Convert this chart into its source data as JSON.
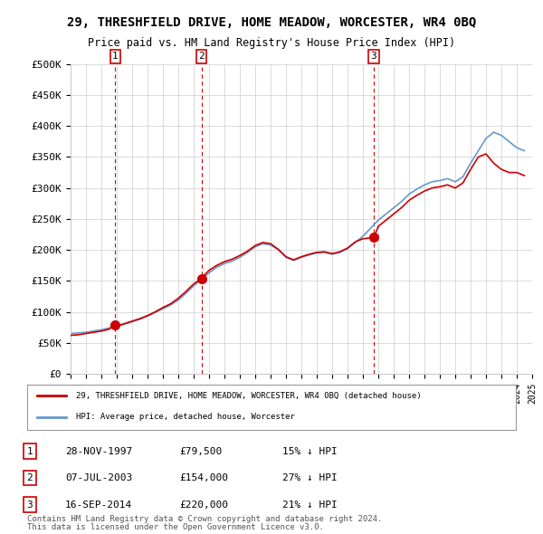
{
  "title": "29, THRESHFIELD DRIVE, HOME MEADOW, WORCESTER, WR4 0BQ",
  "subtitle": "Price paid vs. HM Land Registry's House Price Index (HPI)",
  "ylim": [
    0,
    500000
  ],
  "yticks": [
    0,
    50000,
    100000,
    150000,
    200000,
    250000,
    300000,
    350000,
    400000,
    450000,
    500000
  ],
  "ytick_labels": [
    "£0",
    "£50K",
    "£100K",
    "£150K",
    "£200K",
    "£250K",
    "£300K",
    "£350K",
    "£400K",
    "£450K",
    "£500K"
  ],
  "sale_dates": [
    1997.91,
    2003.52,
    2014.71
  ],
  "sale_prices": [
    79500,
    154000,
    220000
  ],
  "sale_labels": [
    "1",
    "2",
    "3"
  ],
  "legend_red": "29, THRESHFIELD DRIVE, HOME MEADOW, WORCESTER, WR4 0BQ (detached house)",
  "legend_blue": "HPI: Average price, detached house, Worcester",
  "table_rows": [
    [
      "1",
      "28-NOV-1997",
      "£79,500",
      "15% ↓ HPI"
    ],
    [
      "2",
      "07-JUL-2003",
      "£154,000",
      "27% ↓ HPI"
    ],
    [
      "3",
      "16-SEP-2014",
      "£220,000",
      "21% ↓ HPI"
    ]
  ],
  "footnote1": "Contains HM Land Registry data © Crown copyright and database right 2024.",
  "footnote2": "This data is licensed under the Open Government Licence v3.0.",
  "red_color": "#cc0000",
  "blue_color": "#6699cc",
  "vline_color": "#cc0000",
  "grid_color": "#cccccc",
  "background_color": "#ffffff",
  "hpi_x": [
    1995.0,
    1995.5,
    1996.0,
    1996.5,
    1997.0,
    1997.5,
    1998.0,
    1998.5,
    1999.0,
    1999.5,
    2000.0,
    2000.5,
    2001.0,
    2001.5,
    2002.0,
    2002.5,
    2003.0,
    2003.5,
    2004.0,
    2004.5,
    2005.0,
    2005.5,
    2006.0,
    2006.5,
    2007.0,
    2007.5,
    2008.0,
    2008.5,
    2009.0,
    2009.5,
    2010.0,
    2010.5,
    2011.0,
    2011.5,
    2012.0,
    2012.5,
    2013.0,
    2013.5,
    2014.0,
    2014.5,
    2015.0,
    2015.5,
    2016.0,
    2016.5,
    2017.0,
    2017.5,
    2018.0,
    2018.5,
    2019.0,
    2019.5,
    2020.0,
    2020.5,
    2021.0,
    2021.5,
    2022.0,
    2022.5,
    2023.0,
    2023.5,
    2024.0,
    2024.5
  ],
  "hpi_y": [
    65000,
    66000,
    67000,
    69000,
    71000,
    74000,
    77000,
    80000,
    84000,
    88000,
    93000,
    99000,
    105000,
    111000,
    119000,
    130000,
    142000,
    152000,
    163000,
    172000,
    178000,
    182000,
    188000,
    196000,
    205000,
    210000,
    208000,
    200000,
    188000,
    183000,
    188000,
    192000,
    195000,
    196000,
    193000,
    196000,
    202000,
    212000,
    222000,
    235000,
    248000,
    258000,
    268000,
    278000,
    290000,
    298000,
    305000,
    310000,
    312000,
    315000,
    310000,
    318000,
    340000,
    360000,
    380000,
    390000,
    385000,
    375000,
    365000,
    360000
  ],
  "pp_x": [
    1995.0,
    1995.5,
    1996.0,
    1996.5,
    1997.0,
    1997.5,
    1997.92,
    1998.0,
    1998.5,
    1999.0,
    1999.5,
    2000.0,
    2000.5,
    2001.0,
    2001.5,
    2002.0,
    2002.5,
    2003.0,
    2003.52,
    2003.6,
    2004.0,
    2004.5,
    2005.0,
    2005.5,
    2006.0,
    2006.5,
    2007.0,
    2007.5,
    2008.0,
    2008.5,
    2009.0,
    2009.5,
    2010.0,
    2010.5,
    2011.0,
    2011.5,
    2012.0,
    2012.5,
    2013.0,
    2013.5,
    2014.0,
    2014.71,
    2015.0,
    2015.5,
    2016.0,
    2016.5,
    2017.0,
    2017.5,
    2018.0,
    2018.5,
    2019.0,
    2019.5,
    2020.0,
    2020.5,
    2021.0,
    2021.5,
    2022.0,
    2022.5,
    2023.0,
    2023.5,
    2024.0,
    2024.5
  ],
  "pp_y": [
    62000,
    63000,
    65000,
    67000,
    69000,
    72000,
    79500,
    77000,
    81000,
    85000,
    89000,
    94000,
    100000,
    107000,
    113000,
    122000,
    133000,
    145000,
    154000,
    157000,
    167000,
    175000,
    181000,
    185000,
    191000,
    198000,
    207000,
    212000,
    210000,
    201000,
    189000,
    184000,
    189000,
    193000,
    196000,
    197000,
    194000,
    197000,
    203000,
    213000,
    218000,
    220000,
    238000,
    248000,
    258000,
    268000,
    280000,
    288000,
    295000,
    300000,
    302000,
    305000,
    300000,
    308000,
    330000,
    350000,
    355000,
    340000,
    330000,
    325000,
    325000,
    320000
  ]
}
